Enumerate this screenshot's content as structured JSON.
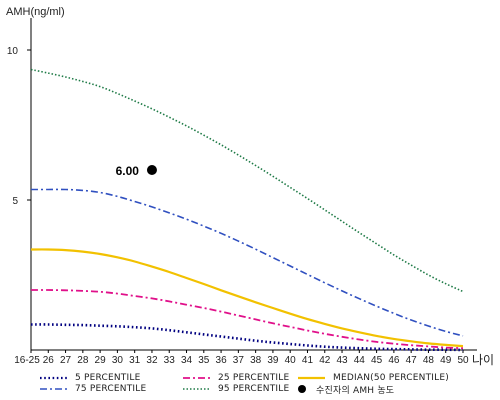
{
  "chart_data": {
    "type": "line",
    "ylabel": "AMH(ng/ml)",
    "xlabel": "나이",
    "ylim": [
      0,
      11
    ],
    "yticks": [
      5,
      10
    ],
    "categories": [
      "16-25",
      "26",
      "27",
      "28",
      "29",
      "30",
      "31",
      "32",
      "33",
      "34",
      "35",
      "36",
      "37",
      "38",
      "39",
      "40",
      "41",
      "42",
      "43",
      "44",
      "45",
      "46",
      "47",
      "48",
      "49",
      "50"
    ],
    "series": [
      {
        "name": "5 PERCENTILE",
        "color": "#000080",
        "dash": "1.6,2.6",
        "width": 2.6,
        "values": [
          0.85,
          0.85,
          0.84,
          0.83,
          0.81,
          0.79,
          0.76,
          0.72,
          0.66,
          0.59,
          0.52,
          0.45,
          0.38,
          0.31,
          0.25,
          0.2,
          0.15,
          0.11,
          0.08,
          0.06,
          0.04,
          0.03,
          0.02,
          0.01,
          0.01,
          0.0
        ]
      },
      {
        "name": "25 PERCENTILE",
        "color": "#e0108a",
        "dash": "7,3,2,3",
        "width": 1.8,
        "values": [
          2.0,
          2.0,
          1.99,
          1.97,
          1.94,
          1.88,
          1.8,
          1.72,
          1.62,
          1.51,
          1.4,
          1.28,
          1.15,
          1.02,
          0.89,
          0.77,
          0.65,
          0.54,
          0.44,
          0.35,
          0.27,
          0.21,
          0.16,
          0.12,
          0.08,
          0.06
        ]
      },
      {
        "name": "MEDIAN(50 PERCENTILE)",
        "color": "#f2c100",
        "dash": "",
        "width": 2.2,
        "values": [
          3.35,
          3.35,
          3.33,
          3.28,
          3.2,
          3.09,
          2.95,
          2.78,
          2.6,
          2.4,
          2.2,
          1.99,
          1.79,
          1.59,
          1.4,
          1.21,
          1.03,
          0.87,
          0.72,
          0.59,
          0.47,
          0.37,
          0.29,
          0.22,
          0.17,
          0.13
        ]
      },
      {
        "name": "75 PERCENTILE",
        "color": "#3050c0",
        "dash": "7,3,2,3",
        "width": 1.6,
        "values": [
          5.35,
          5.35,
          5.35,
          5.32,
          5.25,
          5.12,
          4.95,
          4.77,
          4.57,
          4.36,
          4.13,
          3.89,
          3.63,
          3.36,
          3.08,
          2.8,
          2.52,
          2.24,
          1.97,
          1.71,
          1.46,
          1.22,
          1.0,
          0.8,
          0.62,
          0.47
        ]
      },
      {
        "name": "95 PERCENTILE",
        "color": "#1e7a46",
        "dash": "1.5,2",
        "width": 1.6,
        "values": [
          9.35,
          9.23,
          9.1,
          8.95,
          8.78,
          8.55,
          8.3,
          8.04,
          7.76,
          7.47,
          7.16,
          6.84,
          6.5,
          6.15,
          5.79,
          5.42,
          5.05,
          4.67,
          4.29,
          3.91,
          3.54,
          3.17,
          2.83,
          2.5,
          2.21,
          1.95
        ]
      }
    ],
    "marker": {
      "name": "수진자의 AMH 농도",
      "x": "32",
      "y": 6.0,
      "label": "6.00",
      "color": "#000000"
    },
    "legend": {
      "placement": "bottom",
      "rows": [
        [
          "5 PERCENTILE",
          "25 PERCENTILE",
          "MEDIAN(50 PERCENTILE)"
        ],
        [
          "75 PERCENTILE",
          "95 PERCENTILE",
          "수진자의 AMH 농도"
        ]
      ]
    },
    "grid": false
  }
}
